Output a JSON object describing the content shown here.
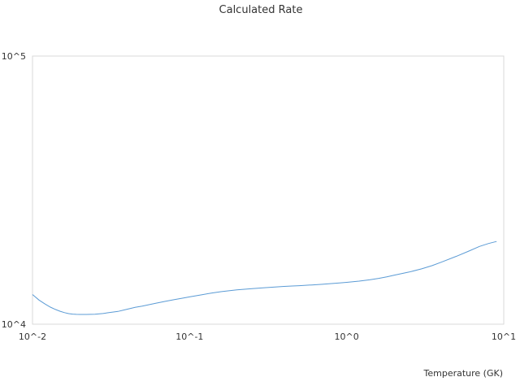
{
  "chart_data": {
    "type": "line",
    "title": "Calculated Rate",
    "xlabel": "Temperature (GK)",
    "ylabel": "",
    "x_scale": "log",
    "y_scale": "log",
    "xlim": [
      0.01,
      10
    ],
    "ylim": [
      10000,
      100000
    ],
    "x_ticks": [
      {
        "value": 0.01,
        "label": "10^-2"
      },
      {
        "value": 0.1,
        "label": "10^-1"
      },
      {
        "value": 1,
        "label": "10^0"
      },
      {
        "value": 10,
        "label": "10^1"
      }
    ],
    "y_ticks": [
      {
        "value": 10000,
        "label": "10^4"
      },
      {
        "value": 100000,
        "label": "10^5"
      }
    ],
    "grid": false,
    "legend": "none",
    "series": [
      {
        "color": "#5b9bd5",
        "x": [
          0.01,
          0.011,
          0.012,
          0.013,
          0.014,
          0.015,
          0.016,
          0.017,
          0.018,
          0.019,
          0.02,
          0.022,
          0.025,
          0.028,
          0.03,
          0.035,
          0.04,
          0.045,
          0.05,
          0.06,
          0.07,
          0.08,
          0.09,
          0.1,
          0.12,
          0.14,
          0.16,
          0.18,
          0.2,
          0.25,
          0.3,
          0.35,
          0.4,
          0.45,
          0.5,
          0.6,
          0.7,
          0.8,
          0.9,
          1.0,
          1.2,
          1.4,
          1.6,
          1.8,
          2.0,
          2.5,
          3.0,
          3.5,
          4.0,
          5.0,
          6.0,
          7.0,
          8.0,
          9.0
        ],
        "y": [
          12900,
          12300,
          11900,
          11580,
          11350,
          11170,
          11040,
          10950,
          10900,
          10880,
          10870,
          10870,
          10890,
          10960,
          11030,
          11160,
          11370,
          11550,
          11680,
          11950,
          12170,
          12350,
          12500,
          12640,
          12880,
          13080,
          13230,
          13330,
          13420,
          13570,
          13680,
          13760,
          13830,
          13880,
          13920,
          14010,
          14090,
          14170,
          14240,
          14320,
          14470,
          14640,
          14820,
          15020,
          15230,
          15650,
          16080,
          16540,
          17030,
          17920,
          18740,
          19500,
          20000,
          20350
        ]
      }
    ]
  }
}
